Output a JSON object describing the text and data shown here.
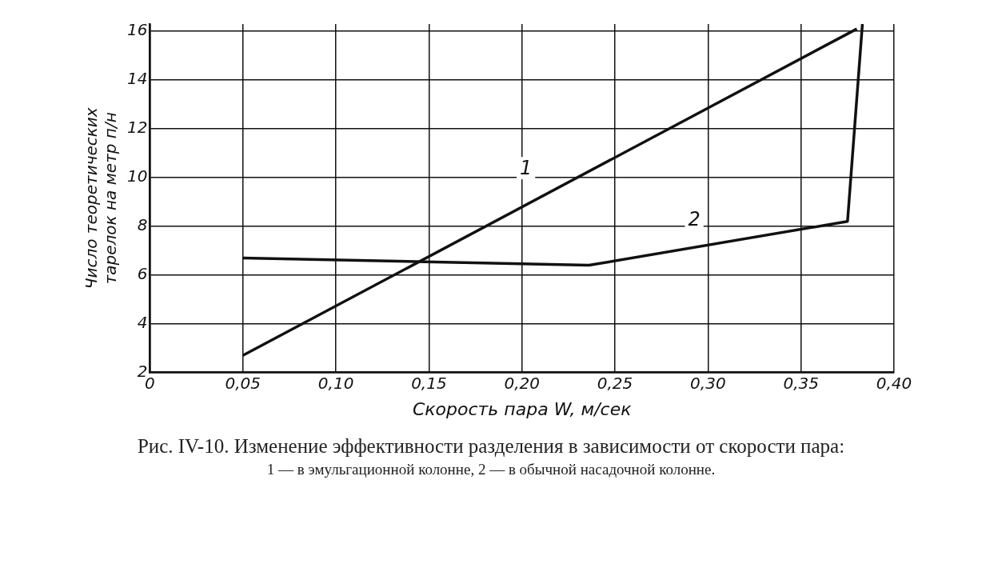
{
  "chart_data": {
    "type": "line",
    "xlabel": "Скорость пара W, м/сек",
    "ylabel": "Число теоретических\nтарелок на метр п/н",
    "series": [
      {
        "name": "1",
        "color": "#111111",
        "x": [
          0.05,
          0.38
        ],
        "values": [
          2.7,
          16.1
        ]
      },
      {
        "name": "2",
        "color": "#111111",
        "x": [
          0.05,
          0.236,
          0.375,
          0.383
        ],
        "values": [
          6.7,
          6.4,
          8.2,
          16.3
        ]
      }
    ],
    "xlim": [
      0,
      0.4
    ],
    "xticks": [
      0,
      {
        "value": 0.05,
        "label": "0,05"
      },
      {
        "value": 0.1,
        "label": "0,10"
      },
      {
        "value": 0.15,
        "label": "0,15"
      },
      {
        "value": 0.2,
        "label": "0,20"
      },
      {
        "value": 0.25,
        "label": "0,25"
      },
      {
        "value": 0.3,
        "label": "0,30"
      },
      {
        "value": 0.35,
        "label": "0,35"
      },
      {
        "value": 0.4,
        "label": "0,40"
      }
    ],
    "ylim": [
      2,
      16.3
    ],
    "yticks": [
      2,
      4,
      6,
      8,
      10,
      12,
      14,
      16
    ],
    "grid": true,
    "legend": false,
    "marker": "none",
    "line_style": "solid",
    "annotations": [
      "Рис. IV-10. Изменение эффективности разделения в зависимости от скорости пара:",
      "1 — в эмульгационной колонне, 2 — в обычной насадочной колонне."
    ]
  }
}
